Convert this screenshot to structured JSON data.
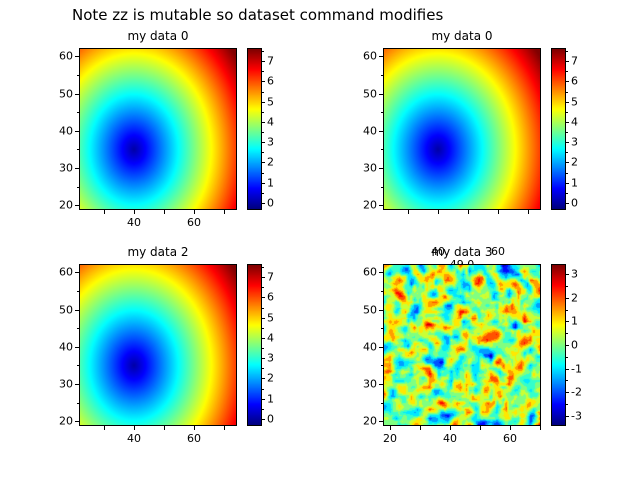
{
  "figure": {
    "title": "Note zz is mutable so dataset command modifies"
  },
  "chart_data": [
    {
      "type": "heatmap",
      "title": "my data 0",
      "colormap": "jet",
      "pattern": "radial-distance",
      "description": "smooth field z = 0.18*sqrt((x-40)^2+(y-35)^2); minimum ~0 (dark blue blob) at (40,35), rising outward to ~7.5 (red) at the top-right corner",
      "center": [
        40,
        35
      ],
      "scale": 0.18,
      "x_range": [
        22,
        74
      ],
      "y_range": [
        19,
        62
      ],
      "x_ticks": [
        40,
        60
      ],
      "y_ticks": [
        20,
        30,
        40,
        50,
        60
      ],
      "color_range": [
        -0.3,
        7.6
      ],
      "colorbar_ticks": [
        0,
        1,
        2,
        3,
        4,
        5,
        6,
        7
      ]
    },
    {
      "type": "heatmap",
      "title": "my data 0",
      "colormap": "jet",
      "pattern": "radial-distance",
      "description": "same smooth field as first subplot",
      "center": [
        40,
        35
      ],
      "scale": 0.18,
      "x_range": [
        22,
        74
      ],
      "y_range": [
        19,
        62
      ],
      "x_ticks": [
        40,
        60
      ],
      "y_ticks": [
        20,
        30,
        40,
        50,
        60
      ],
      "color_range": [
        -0.3,
        7.6
      ],
      "colorbar_ticks": [
        0,
        1,
        2,
        3,
        4,
        5,
        6,
        7
      ]
    },
    {
      "type": "heatmap",
      "title": "my data 2",
      "colormap": "jet",
      "pattern": "radial-distance",
      "description": "same smooth field as first subplot",
      "center": [
        40,
        35
      ],
      "scale": 0.18,
      "x_range": [
        22,
        74
      ],
      "y_range": [
        19,
        62
      ],
      "x_ticks": [
        40,
        60
      ],
      "y_ticks": [
        20,
        30,
        40,
        50,
        60
      ],
      "color_range": [
        -0.3,
        7.6
      ],
      "colorbar_ticks": [
        0,
        1,
        2,
        3,
        4,
        5,
        6,
        7
      ]
    },
    {
      "type": "heatmap",
      "title": "my data 3",
      "subtitle": "49.0",
      "colormap": "jet",
      "pattern": "random-noise",
      "description": "speckled random-noise field (filled-contour look): mostly green (~0) with yellow/orange patches and sparse red and blue specks",
      "seed": 11,
      "noise_mean": 0.2,
      "noise_std": 1.0,
      "x_range": [
        18,
        70
      ],
      "y_range": [
        19,
        62
      ],
      "x_ticks": [
        20,
        40,
        60
      ],
      "y_ticks": [
        20,
        30,
        40,
        50,
        60
      ],
      "color_range": [
        -3.4,
        3.4
      ],
      "colorbar_ticks": [
        -3,
        -2,
        -1,
        0,
        1,
        2,
        3
      ]
    }
  ]
}
